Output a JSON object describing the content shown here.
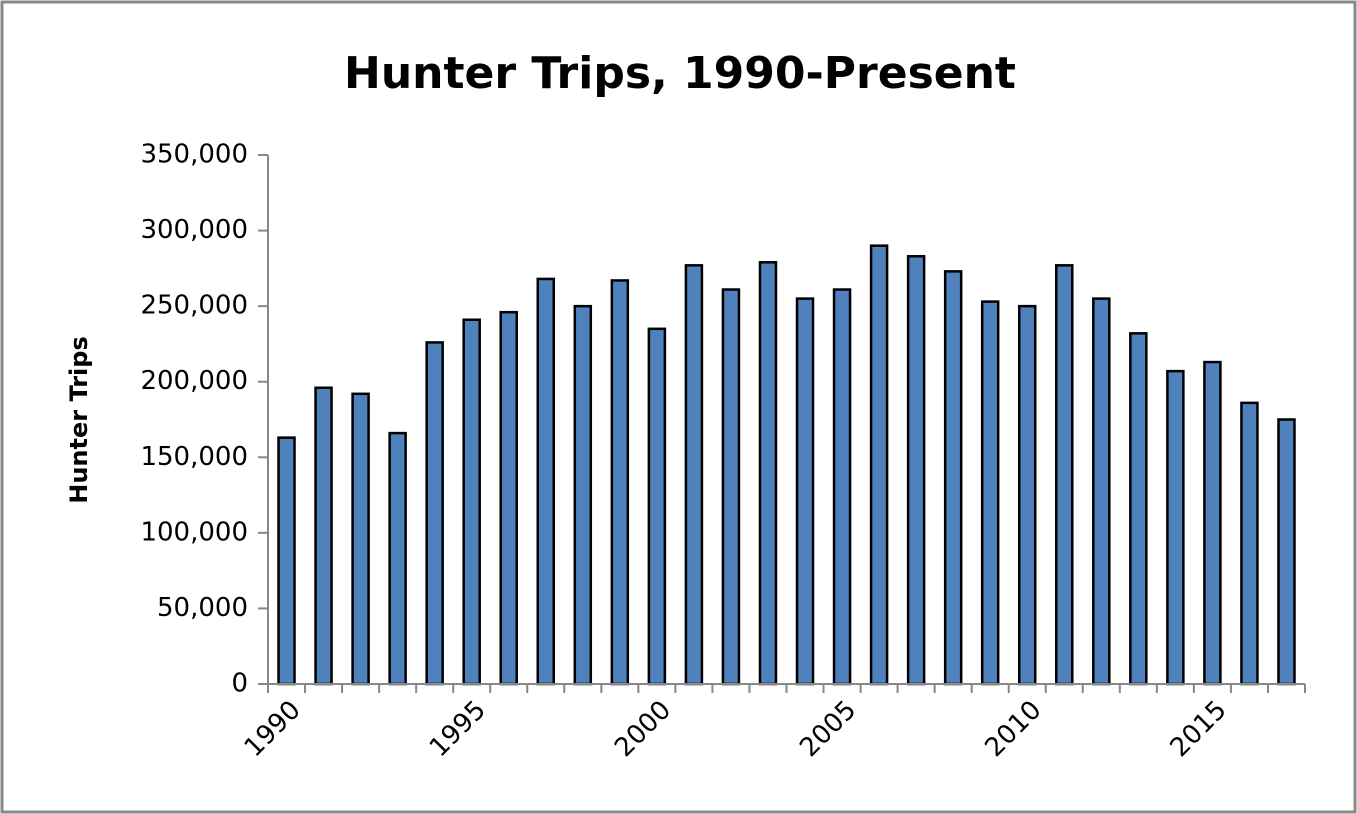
{
  "chart_data": {
    "type": "bar",
    "title": "Hunter Trips, 1990-Present",
    "y_label": "Hunter Trips",
    "categories": [
      "1990",
      null,
      null,
      null,
      null,
      "1995",
      null,
      null,
      null,
      null,
      "2000",
      null,
      null,
      null,
      null,
      "2005",
      null,
      null,
      null,
      null,
      "2010",
      null,
      null,
      null,
      null,
      "2015",
      null,
      null
    ],
    "values": [
      163000,
      196000,
      192000,
      166000,
      226000,
      241000,
      246000,
      268000,
      250000,
      267000,
      235000,
      277000,
      261000,
      279000,
      255000,
      261000,
      290000,
      283000,
      273000,
      253000,
      250000,
      277000,
      255000,
      232000,
      207000,
      213000,
      186000,
      175000
    ],
    "color": "#4f81bd",
    "ylim": [
      0,
      350000
    ],
    "yticks": [
      0,
      {
        "value": 50000,
        "label": "50,000"
      },
      {
        "value": 100000,
        "label": "100,000"
      },
      {
        "value": 150000,
        "label": "150,000"
      },
      {
        "value": 200000,
        "label": "200,000"
      },
      {
        "value": 250000,
        "label": "250,000"
      },
      {
        "value": 300000,
        "label": "300,000"
      },
      {
        "value": 350000,
        "label": "350,000"
      }
    ],
    "grid": false
  }
}
